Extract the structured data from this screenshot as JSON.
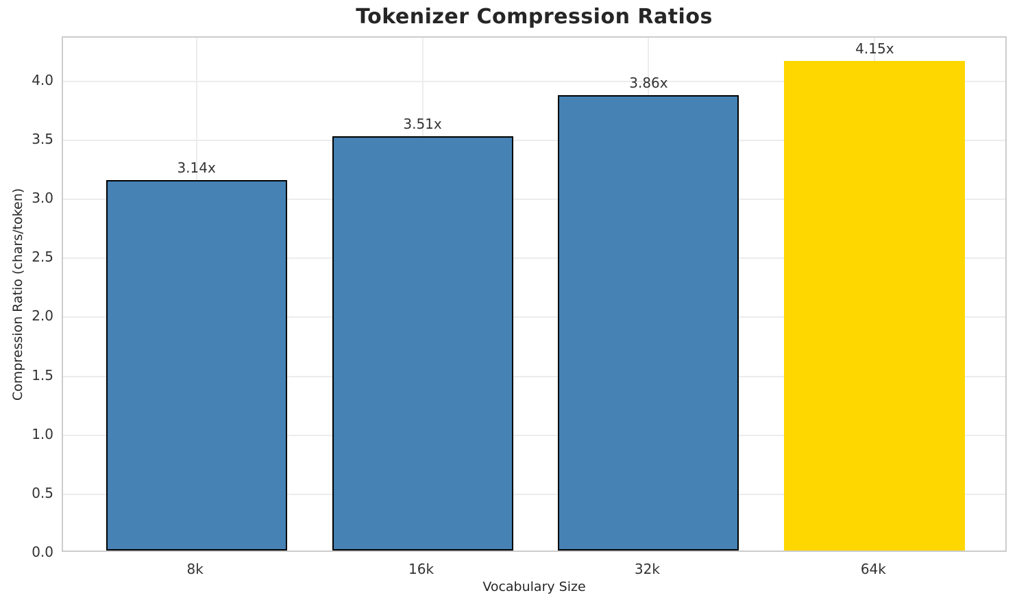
{
  "chart_data": {
    "type": "bar",
    "title": "Tokenizer Compression Ratios",
    "xlabel": "Vocabulary Size",
    "ylabel": "Compression Ratio (chars/token)",
    "categories": [
      "8k",
      "16k",
      "32k",
      "64k"
    ],
    "values": [
      3.14,
      3.51,
      3.86,
      4.15
    ],
    "bar_labels": [
      "3.14x",
      "3.51x",
      "3.86x",
      "4.15x"
    ],
    "bar_colors": [
      "#4682b4",
      "#4682b4",
      "#4682b4",
      "#ffd700"
    ],
    "bar_edge_colors": [
      "#000000",
      "#000000",
      "#000000",
      "none"
    ],
    "highlight_category": "64k",
    "yticks": [
      0.0,
      0.5,
      1.0,
      1.5,
      2.0,
      2.5,
      3.0,
      3.5,
      4.0
    ],
    "ytick_labels": [
      "0.0",
      "0.5",
      "1.0",
      "1.5",
      "2.0",
      "2.5",
      "3.0",
      "3.5",
      "4.0"
    ],
    "ylim": [
      0,
      4.37
    ],
    "grid": true,
    "legend_position": "none",
    "style": {
      "bar_blue": "#4682b4",
      "bar_gold": "#ffd700",
      "grid_color": "#ececec",
      "spine_color": "#cccccc",
      "text_color": "#262626",
      "tick_text_color": "#333333",
      "background": "#ffffff"
    }
  }
}
